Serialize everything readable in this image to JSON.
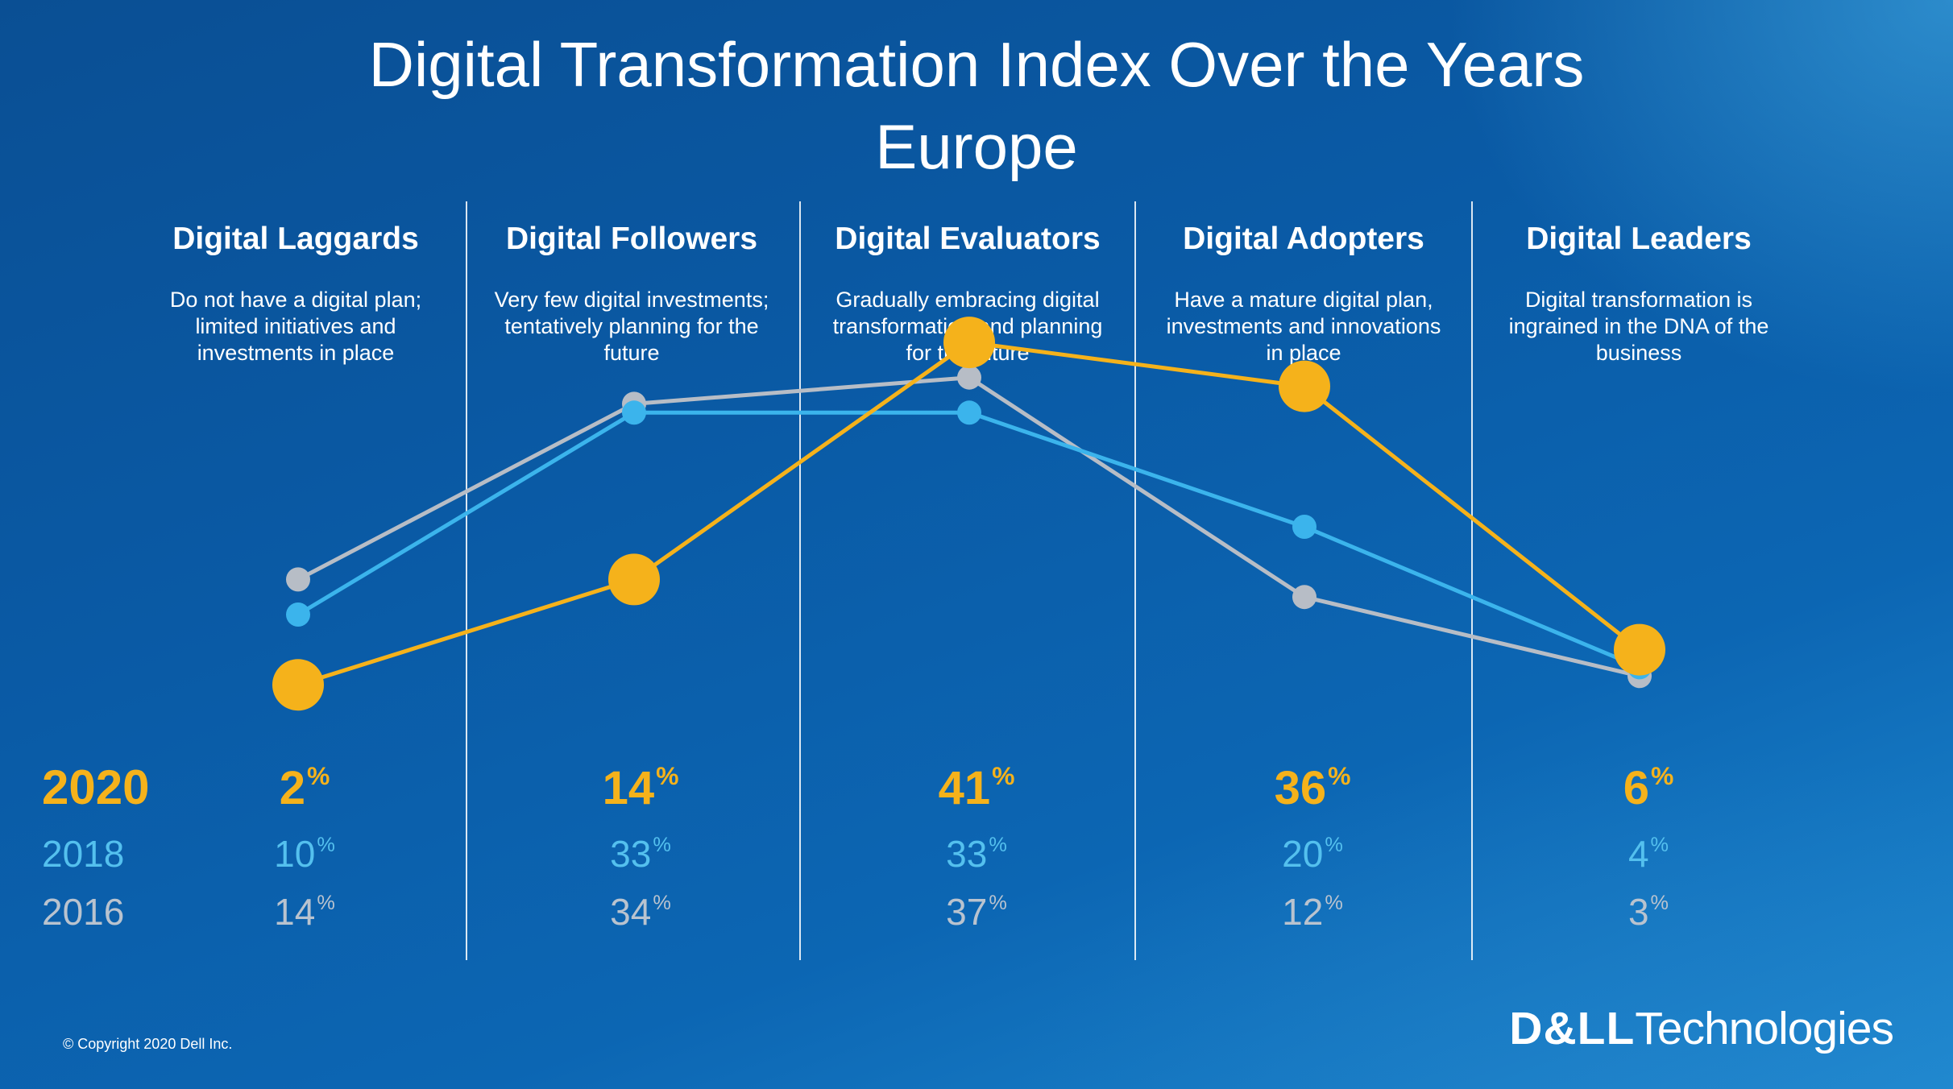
{
  "title_line1": "Digital Transformation Index Over the Years",
  "title_line2": "Europe",
  "colors": {
    "y2020": "#f5b21b",
    "y2018": "#3bb4ec",
    "y2016": "#b7bdc6"
  },
  "categories": [
    {
      "name": "Digital Laggards",
      "description": "Do not have a digital plan; limited initiatives and investments in place"
    },
    {
      "name": "Digital Followers",
      "description": "Very few digital investments; tentatively planning for the future"
    },
    {
      "name": "Digital Evaluators",
      "description": "Gradually embracing digital transformation and planning for the future"
    },
    {
      "name": "Digital Adopters",
      "description": "Have a mature digital plan, investments and innovations in place"
    },
    {
      "name": "Digital Leaders",
      "description": "Digital transformation is ingrained in the DNA of the business"
    }
  ],
  "rows": [
    {
      "year": "2020",
      "values": [
        "2",
        "14",
        "41",
        "36",
        "6"
      ]
    },
    {
      "year": "2018",
      "values": [
        "10",
        "33",
        "33",
        "20",
        "4"
      ]
    },
    {
      "year": "2016",
      "values": [
        "14",
        "34",
        "37",
        "12",
        "3"
      ]
    }
  ],
  "unit": "%",
  "chart_data": {
    "type": "line",
    "categories": [
      "Digital Laggards",
      "Digital Followers",
      "Digital Evaluators",
      "Digital Adopters",
      "Digital Leaders"
    ],
    "series": [
      {
        "name": "2020",
        "values": [
          2,
          14,
          41,
          36,
          6
        ]
      },
      {
        "name": "2018",
        "values": [
          10,
          33,
          33,
          20,
          4
        ]
      },
      {
        "name": "2016",
        "values": [
          14,
          34,
          37,
          12,
          3
        ]
      }
    ],
    "title": "Digital Transformation Index Over the Years",
    "subtitle": "Europe",
    "xlabel": "",
    "ylabel": "",
    "ylim": [
      0,
      42
    ],
    "grid": false,
    "legend": "left",
    "unit": "%"
  },
  "copyright": "© Copyright 2020 Dell Inc.",
  "logo": {
    "brand": "D&LL",
    "suffix": "Technologies"
  }
}
